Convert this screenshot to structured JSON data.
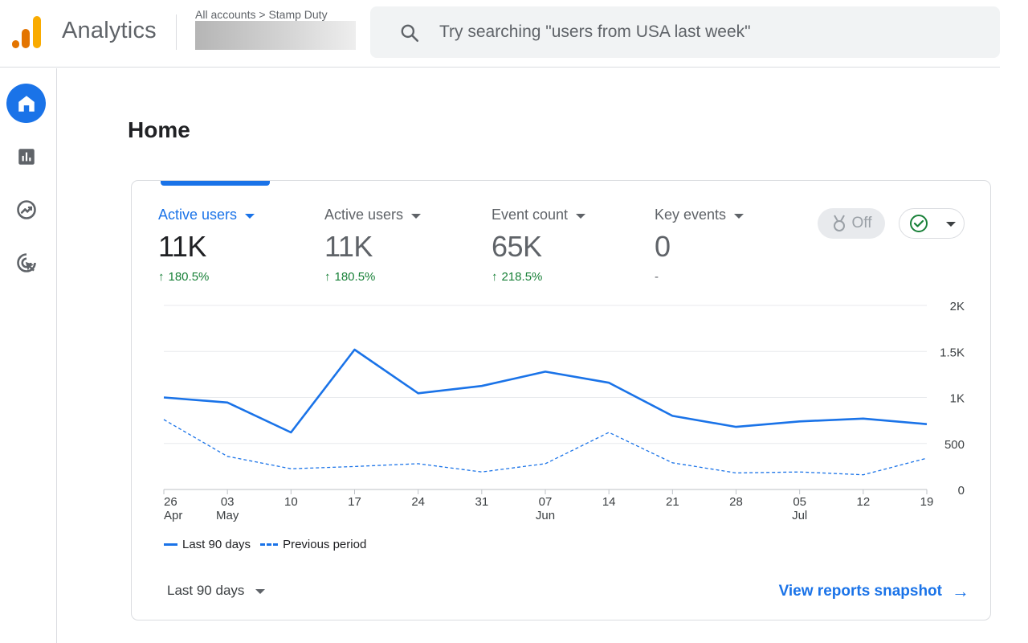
{
  "app": {
    "name": "Analytics",
    "breadcrumb": "All accounts > Stamp Duty",
    "logo_colors": [
      "#f9ab00",
      "#e37400"
    ]
  },
  "search": {
    "placeholder": "Try searching \"users from USA last week\"",
    "value": ""
  },
  "rail": {
    "items": [
      {
        "icon": "home-icon",
        "active": true
      },
      {
        "icon": "reports-icon",
        "active": false
      },
      {
        "icon": "explore-icon",
        "active": false
      },
      {
        "icon": "advertising-icon",
        "active": false
      }
    ]
  },
  "page": {
    "title": "Home"
  },
  "card": {
    "metrics": [
      {
        "label": "Active users",
        "value": "11K",
        "change": "180.5%",
        "selected": true
      },
      {
        "label": "Active users",
        "value": "11K",
        "change": "180.5%",
        "selected": false
      },
      {
        "label": "Event count",
        "value": "65K",
        "change": "218.5%",
        "selected": false
      },
      {
        "label": "Key events",
        "value": "0",
        "change": "-",
        "selected": false
      }
    ],
    "insights_toggle": "Off",
    "date_range": "Last 90 days",
    "snapshot_link": "View reports snapshot"
  },
  "colors": {
    "accent": "#1a73e8",
    "positive": "#188038",
    "gridline": "#e8eaed"
  },
  "chart_data": {
    "type": "line",
    "x": [
      "26 Apr",
      "03 May",
      "10",
      "17",
      "24",
      "31",
      "07 Jun",
      "14",
      "21",
      "28",
      "05 Jul",
      "12",
      "19"
    ],
    "x_tick_labels": [
      {
        "top": "26",
        "bottom": "Apr"
      },
      {
        "top": "03",
        "bottom": "May"
      },
      {
        "top": "10",
        "bottom": ""
      },
      {
        "top": "17",
        "bottom": ""
      },
      {
        "top": "24",
        "bottom": ""
      },
      {
        "top": "31",
        "bottom": ""
      },
      {
        "top": "07",
        "bottom": "Jun"
      },
      {
        "top": "14",
        "bottom": ""
      },
      {
        "top": "21",
        "bottom": ""
      },
      {
        "top": "28",
        "bottom": ""
      },
      {
        "top": "05",
        "bottom": "Jul"
      },
      {
        "top": "12",
        "bottom": ""
      },
      {
        "top": "19",
        "bottom": ""
      }
    ],
    "y_ticks": [
      "0",
      "500",
      "1K",
      "1.5K",
      "2K"
    ],
    "y_tick_values": [
      0,
      500,
      1000,
      1500,
      2000
    ],
    "ylim": [
      0,
      2000
    ],
    "y_axis_position": "right",
    "grid": true,
    "legend_position": "bottom-left",
    "series": [
      {
        "name": "Last 90 days",
        "style": "solid",
        "values": [
          1000,
          945,
          620,
          1520,
          1045,
          1125,
          1280,
          1160,
          800,
          680,
          740,
          770,
          710
        ]
      },
      {
        "name": "Previous period",
        "style": "dashed",
        "values": [
          760,
          360,
          225,
          250,
          280,
          190,
          280,
          620,
          290,
          180,
          190,
          160,
          340
        ]
      }
    ]
  }
}
